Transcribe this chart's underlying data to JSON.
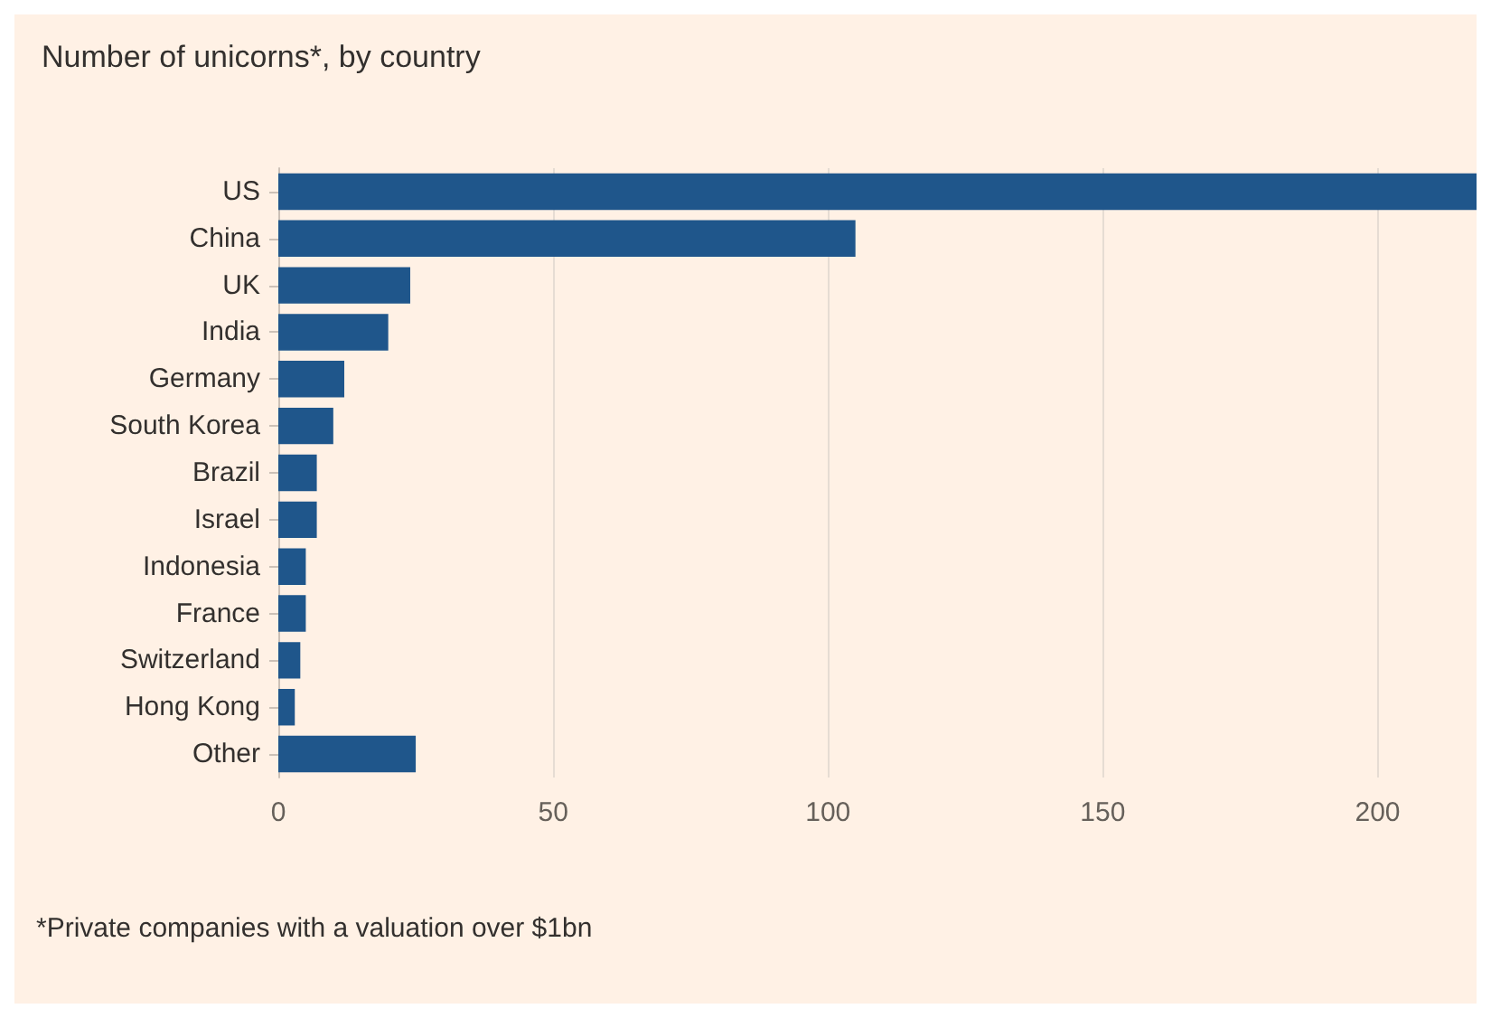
{
  "chart_data": {
    "type": "bar",
    "orientation": "horizontal",
    "title": "Number of unicorns*, by country",
    "categories": [
      "US",
      "China",
      "UK",
      "India",
      "Germany",
      "South Korea",
      "Brazil",
      "Israel",
      "Indonesia",
      "France",
      "Switzerland",
      "Hong Kong",
      "Other"
    ],
    "values": [
      218,
      105,
      24,
      20,
      12,
      10,
      7,
      7,
      5,
      5,
      4,
      3,
      25
    ],
    "color": "#1f568b",
    "xlim": [
      0,
      218
    ],
    "xticks": [
      0,
      50,
      100,
      150,
      200
    ],
    "grid": "x",
    "annotations": [
      "*Private companies with a valuation over $1bn"
    ]
  }
}
